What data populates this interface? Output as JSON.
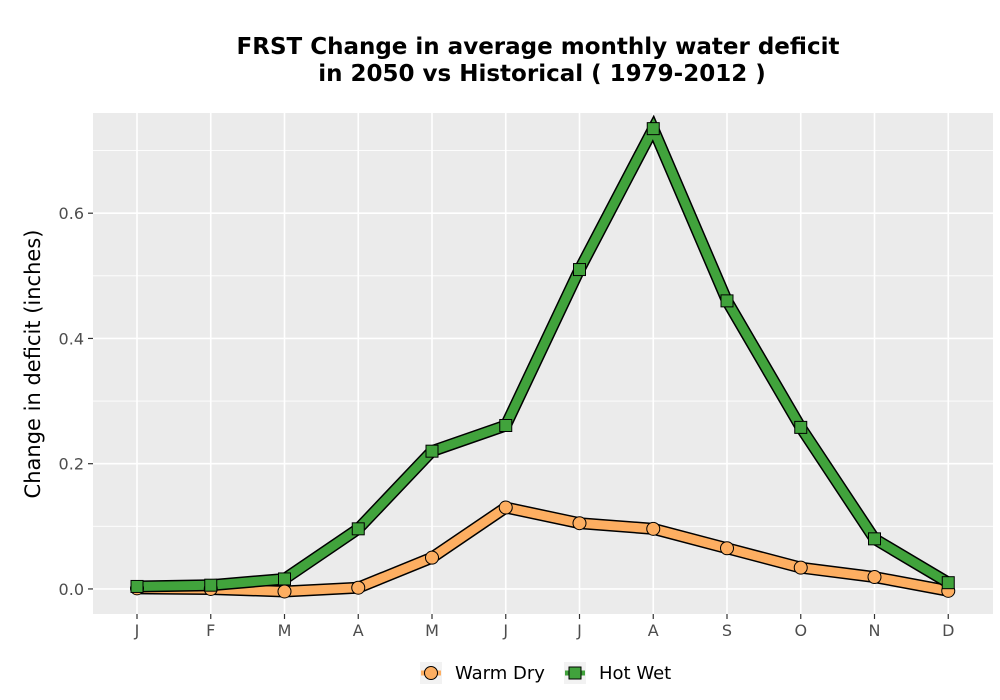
{
  "chart_data": {
    "type": "line",
    "title_lines": [
      "FRST  Change in average monthly water deficit",
      "in 2050 vs Historical ( 1979-2012 )"
    ],
    "xlabel": "",
    "ylabel": "Change in deficit (inches)",
    "categories": [
      "J",
      "F",
      "M",
      "A",
      "M",
      "J",
      "J",
      "A",
      "S",
      "O",
      "N",
      "D"
    ],
    "ylim": [
      -0.04,
      0.76
    ],
    "yticks": [
      0.0,
      0.2,
      0.4,
      0.6
    ],
    "ytick_labels": [
      "0.0",
      "0.2",
      "0.4",
      "0.6"
    ],
    "grid": true,
    "legend_position": "bottom",
    "series": [
      {
        "name": "Warm Dry",
        "marker": "circle",
        "color": "#fdae61",
        "values": [
          0.001,
          0.0,
          -0.004,
          0.002,
          0.05,
          0.13,
          0.105,
          0.096,
          0.065,
          0.034,
          0.019,
          -0.003
        ]
      },
      {
        "name": "Hot Wet",
        "marker": "square",
        "color": "#41a33c",
        "values": [
          0.004,
          0.006,
          0.016,
          0.096,
          0.22,
          0.261,
          0.51,
          0.735,
          0.46,
          0.258,
          0.08,
          0.01
        ]
      }
    ],
    "colors": {
      "panel": "#ebebeb",
      "grid": "#ffffff",
      "outline": "#000000"
    }
  }
}
